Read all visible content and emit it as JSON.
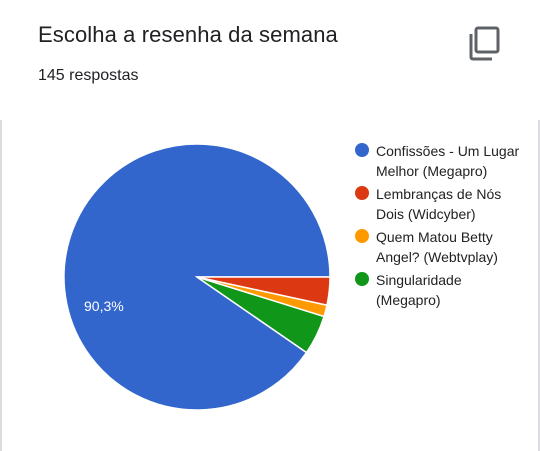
{
  "header": {
    "title": "Escolha a resenha da semana",
    "responses": "145 respostas",
    "copy_icon": "copy-icon"
  },
  "chart_data": {
    "type": "pie",
    "categories": [
      "Confissões - Um Lugar Melhor (Megapro)",
      "Lembranças de Nós Dois (Widcyber)",
      "Quem Matou Betty Angel? (Webtvplay)",
      "Singularidade (Megapro)"
    ],
    "values": [
      90.3,
      3.4,
      1.4,
      4.8
    ],
    "slice_labels": [
      "90,3%",
      "",
      "",
      ""
    ],
    "colors": [
      "#3366cc",
      "#dc3912",
      "#ff9900",
      "#109618"
    ],
    "legend": "right"
  },
  "legend": {
    "items": [
      {
        "label": "Confissões - Um Lugar Melhor (Megapro)",
        "color": "#3366cc"
      },
      {
        "label": "Lembranças de Nós Dois (Widcyber)",
        "color": "#dc3912"
      },
      {
        "label": "Quem Matou Betty Angel? (Webtvplay)",
        "color": "#ff9900"
      },
      {
        "label": "Singularidade (Megapro)",
        "color": "#109618"
      }
    ]
  }
}
